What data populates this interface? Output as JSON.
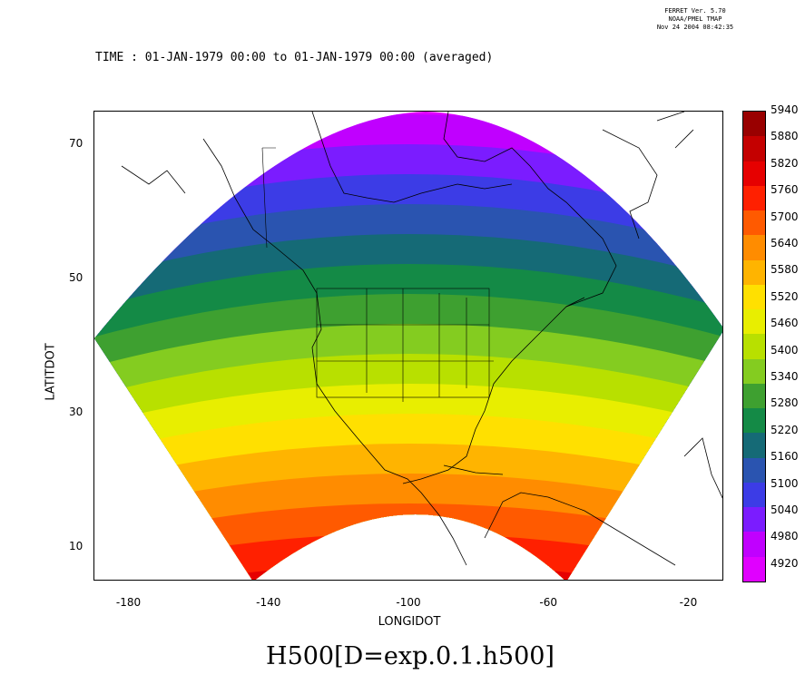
{
  "meta": {
    "line1": "FERRET Ver. 5.70",
    "line2": "NOAA/PMEL TMAP",
    "line3": "Nov 24 2004 08:42:35"
  },
  "header": {
    "time_label": "TIME : 01-JAN-1979 00:00 to 01-JAN-1979 00:00 (averaged)"
  },
  "plot": {
    "title": "H500[D=exp.0.1.h500]",
    "xlabel": "LONGIDOT",
    "ylabel": "LATITDOT",
    "xticks": [
      "-180",
      "-140",
      "-100",
      "-60",
      "-20"
    ],
    "yticks": [
      "70",
      "50",
      "30",
      "10"
    ],
    "xlim": [
      -190,
      -10
    ],
    "ylim": [
      5,
      75
    ]
  },
  "colorbar": {
    "levels": [
      "5940",
      "5880",
      "5820",
      "5760",
      "5700",
      "5640",
      "5580",
      "5520",
      "5460",
      "5400",
      "5340",
      "5280",
      "5220",
      "5160",
      "5100",
      "5040",
      "4980",
      "4920"
    ],
    "colors": [
      "#990000",
      "#c40000",
      "#e60000",
      "#ff2000",
      "#ff5a00",
      "#ff8c00",
      "#ffb400",
      "#ffe000",
      "#e8ee00",
      "#b8e000",
      "#84cc20",
      "#3ea030",
      "#148a46",
      "#156a76",
      "#2a54b0",
      "#3c3ce6",
      "#7b1cff",
      "#c000ff",
      "#e000ff"
    ]
  },
  "chart_data": {
    "type": "heatmap",
    "variable": "H500[D=exp.0.1.h500]",
    "xlabel": "LONGIDOT",
    "ylabel": "LATITDOT",
    "xlim": [
      -190,
      -10
    ],
    "ylim": [
      5,
      75
    ],
    "contour_levels": [
      4920,
      4980,
      5040,
      5100,
      5160,
      5220,
      5280,
      5340,
      5400,
      5460,
      5520,
      5580,
      5640,
      5700,
      5760,
      5820,
      5880,
      5940
    ],
    "approx_band_centers_lat_at_lon_minus100": [
      {
        "value_range": [
          4920,
          5040
        ],
        "lat": 70
      },
      {
        "value_range": [
          5100,
          5220
        ],
        "lat": 57
      },
      {
        "value_range": [
          5280,
          5400
        ],
        "lat": 48
      },
      {
        "value_range": [
          5460,
          5580
        ],
        "lat": 41
      },
      {
        "value_range": [
          5640,
          5760
        ],
        "lat": 33
      },
      {
        "value_range": [
          5760,
          5880
        ],
        "lat": 22
      }
    ]
  }
}
